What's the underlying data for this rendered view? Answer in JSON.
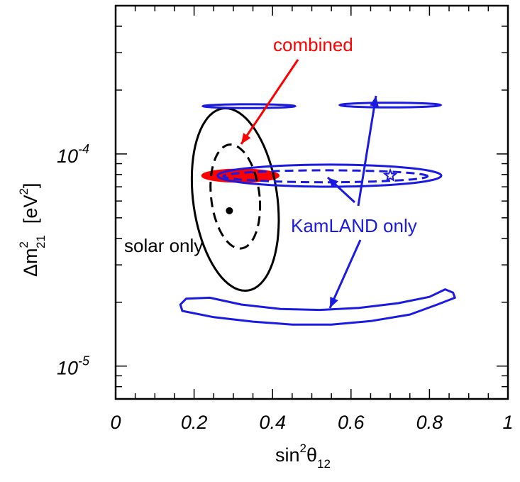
{
  "chart_data": {
    "type": "contour",
    "xlabel": {
      "base": "sin",
      "sup": "2",
      "sym": "θ",
      "sub": "12"
    },
    "ylabel": {
      "pre": "Δm",
      "sup": "2",
      "sub": "21",
      "unit_pre": "[eV",
      "unit_sup": "2",
      "unit_post": "]"
    },
    "xlim": [
      0,
      1
    ],
    "ylim": [
      7e-06,
      0.0005
    ],
    "yscale": "log",
    "xticks": [
      {
        "value": 0,
        "label": "0"
      },
      {
        "value": 0.2,
        "label": "0.2"
      },
      {
        "value": 0.4,
        "label": "0.4"
      },
      {
        "value": 0.6,
        "label": "0.6"
      },
      {
        "value": 0.8,
        "label": "0.8"
      },
      {
        "value": 1,
        "label": "1"
      }
    ],
    "yticks": [
      {
        "value": 1e-05,
        "base": "10",
        "exp": "-5"
      },
      {
        "value": 0.0001,
        "base": "10",
        "exp": "-4"
      }
    ],
    "annotations": {
      "combined": "combined",
      "kamland": "KamLAND only",
      "solar": "solar only"
    },
    "series": {
      "solar_best_fit": {
        "x": 0.29,
        "y": 5.4e-05
      },
      "kamland_best_fit": {
        "x": 0.7,
        "y": 7.9e-05
      },
      "combined_best_fit": {
        "x": 0.31,
        "y": 7.9e-05
      }
    },
    "colors": {
      "solar": "#000000",
      "kamland": "#1a1ae0",
      "combined": "#ff0000",
      "axes": "#000000"
    }
  }
}
